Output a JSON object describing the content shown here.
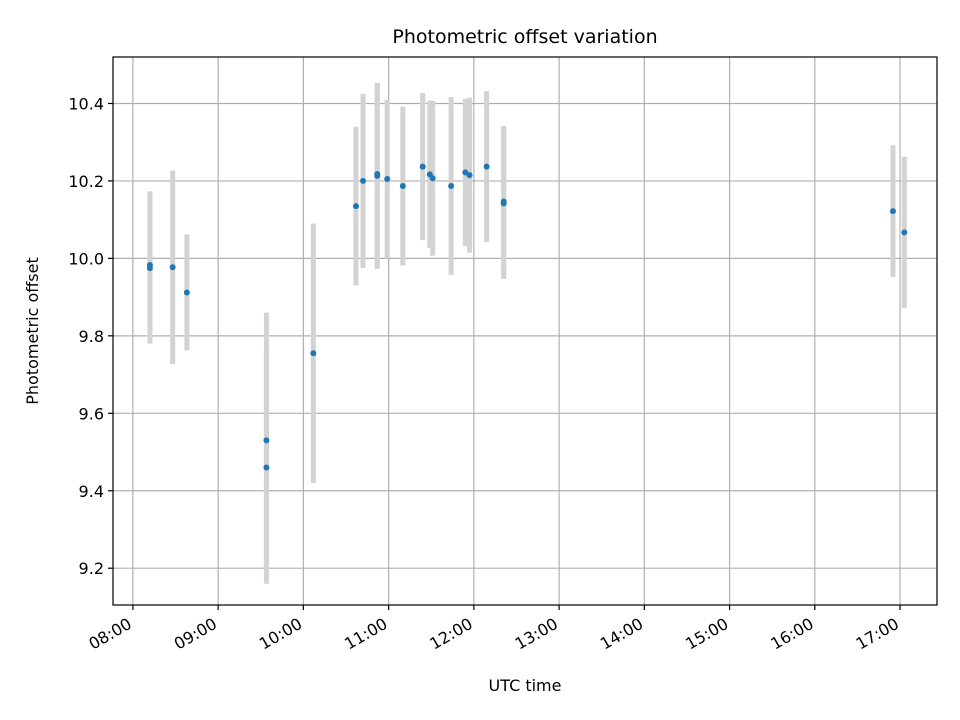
{
  "chart_data": {
    "type": "scatter",
    "title": "Photometric offset variation",
    "xlabel": "UTC time",
    "ylabel": "Photometric offset",
    "x_ticks": [
      "08:00",
      "09:00",
      "10:00",
      "11:00",
      "12:00",
      "13:00",
      "14:00",
      "15:00",
      "16:00",
      "17:00"
    ],
    "y_ticks": [
      9.2,
      9.4,
      9.6,
      9.8,
      10.0,
      10.2,
      10.4
    ],
    "xlim": [
      "07:46",
      "17:26"
    ],
    "ylim": [
      9.105,
      10.52
    ],
    "grid": true,
    "colors": {
      "point": "#1f77b4",
      "errorbar": "#d3d3d3",
      "grid": "#b0b0b0"
    },
    "points": [
      {
        "time": "08:12",
        "y": 9.975,
        "err": 0.195
      },
      {
        "time": "08:12",
        "y": 9.983,
        "err": 0.19
      },
      {
        "time": "08:28",
        "y": 9.977,
        "err": 0.25
      },
      {
        "time": "08:38",
        "y": 9.912,
        "err": 0.15
      },
      {
        "time": "09:34",
        "y": 9.53,
        "err": 0.33
      },
      {
        "time": "09:34",
        "y": 9.46,
        "err": 0.3
      },
      {
        "time": "10:07",
        "y": 9.755,
        "err": 0.335
      },
      {
        "time": "10:37",
        "y": 10.135,
        "err": 0.205
      },
      {
        "time": "10:42",
        "y": 10.2,
        "err": 0.225
      },
      {
        "time": "10:52",
        "y": 10.213,
        "err": 0.24
      },
      {
        "time": "10:52",
        "y": 10.218,
        "err": 0.235
      },
      {
        "time": "10:59",
        "y": 10.205,
        "err": 0.205
      },
      {
        "time": "11:10",
        "y": 10.187,
        "err": 0.205
      },
      {
        "time": "11:24",
        "y": 10.237,
        "err": 0.19
      },
      {
        "time": "11:29",
        "y": 10.217,
        "err": 0.19
      },
      {
        "time": "11:31",
        "y": 10.207,
        "err": 0.2
      },
      {
        "time": "11:44",
        "y": 10.187,
        "err": 0.23
      },
      {
        "time": "11:54",
        "y": 10.222,
        "err": 0.19
      },
      {
        "time": "11:57",
        "y": 10.215,
        "err": 0.2
      },
      {
        "time": "12:09",
        "y": 10.237,
        "err": 0.195
      },
      {
        "time": "12:21",
        "y": 10.142,
        "err": 0.195
      },
      {
        "time": "12:21",
        "y": 10.147,
        "err": 0.195
      },
      {
        "time": "16:55",
        "y": 10.122,
        "err": 0.17
      },
      {
        "time": "17:03",
        "y": 10.067,
        "err": 0.195
      }
    ]
  }
}
